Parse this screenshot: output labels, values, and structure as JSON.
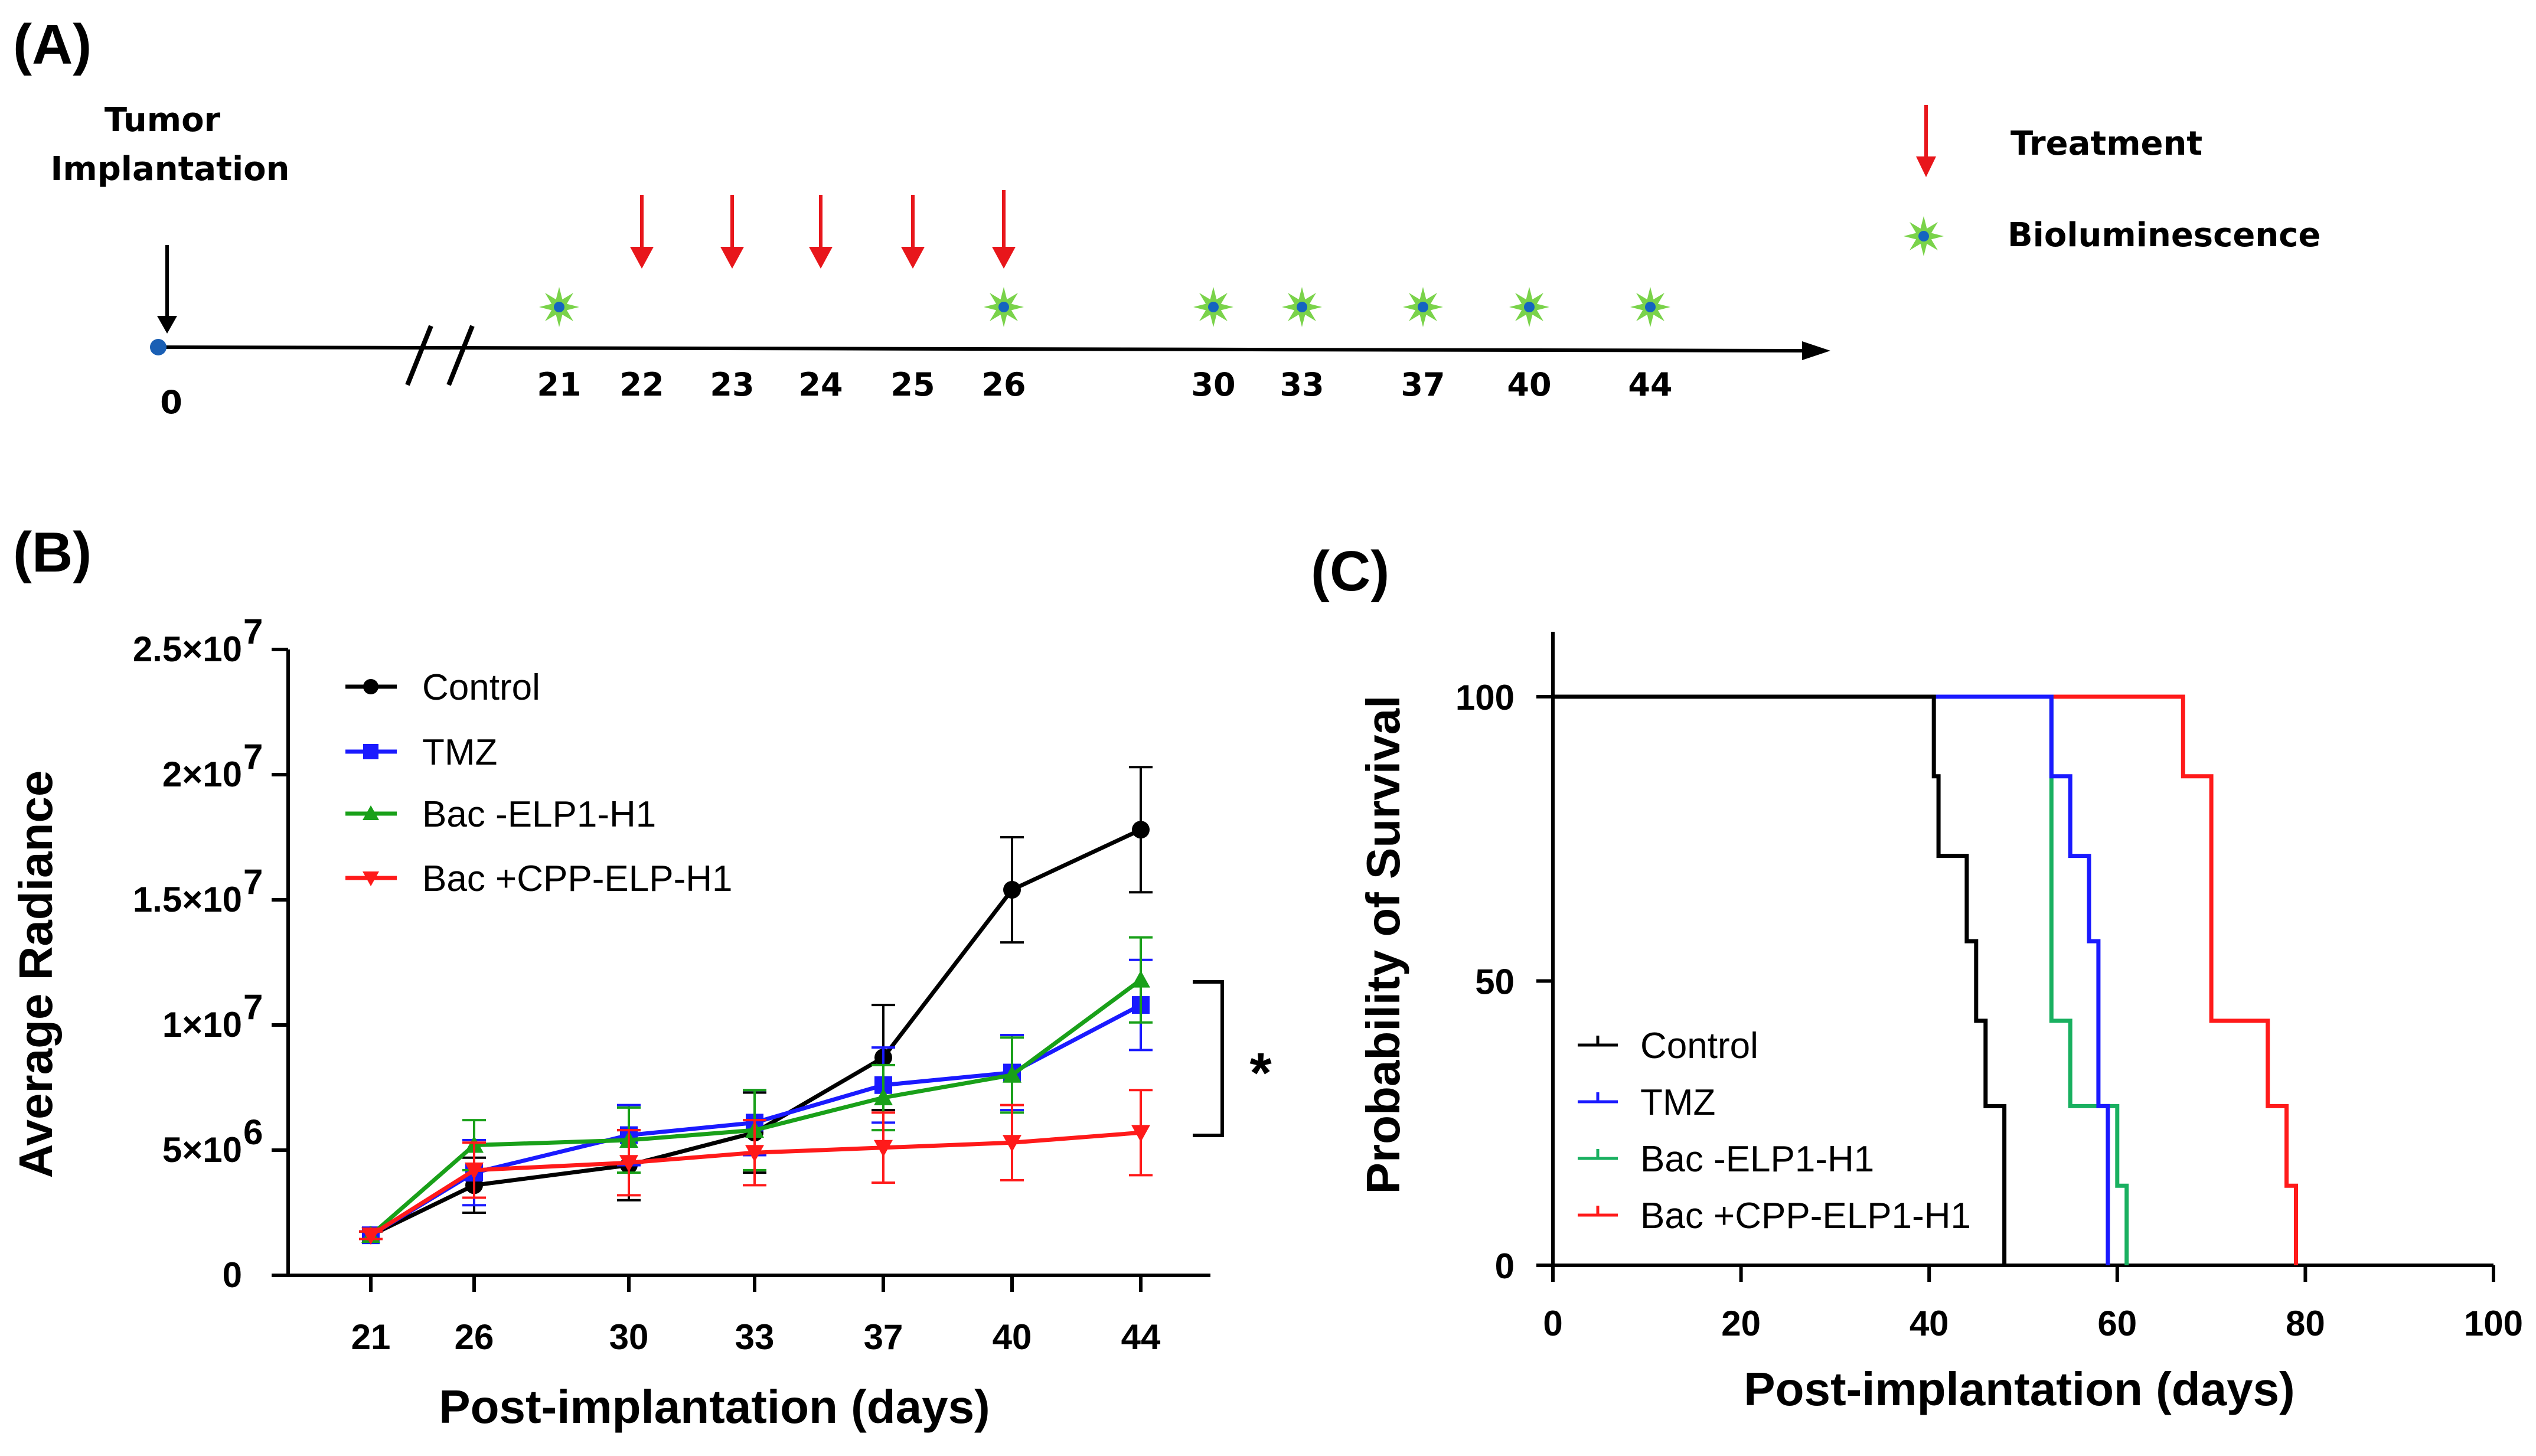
{
  "panels": {
    "A": "(A)",
    "B": "(B)",
    "C": "(C)"
  },
  "timeline": {
    "implant_label_line1": "Tumor",
    "implant_label_line2": "Implantation",
    "treatment_legend": "Treatment",
    "bioluminescence_legend": "Bioluminescence",
    "days": [
      "0",
      "21",
      "22",
      "23",
      "24",
      "25",
      "26",
      "30",
      "33",
      "37",
      "40",
      "44"
    ],
    "treatment_days": [
      "22",
      "23",
      "24",
      "25",
      "26"
    ],
    "bioluminescence_days": [
      "21",
      "26",
      "30",
      "33",
      "37",
      "40",
      "44"
    ],
    "colors": {
      "treatment": "#e8161b",
      "bioluminescence_outer": "#7ad34a",
      "bioluminescence_inner": "#1565c0",
      "origin": "#1a5fb4"
    }
  },
  "chart_data": [
    {
      "type": "line",
      "panel": "B",
      "xlabel": "Post-implantation (days)",
      "ylabel": "Average Radiance",
      "categories": [
        "21",
        "26",
        "30",
        "33",
        "37",
        "40",
        "44"
      ],
      "ylim": [
        0,
        25000000
      ],
      "yticks": [
        0,
        5000000,
        10000000,
        15000000,
        20000000,
        25000000
      ],
      "ytick_labels": [
        "0",
        "5×10",
        "1×10",
        "1.5×10",
        "2×10",
        "2.5×10"
      ],
      "ytick_exponents": [
        "",
        "6",
        "7",
        "7",
        "7",
        "7"
      ],
      "significance": "*",
      "legend_position": "top-left",
      "series": [
        {
          "name": "Control",
          "color": "#000000",
          "marker": "circle",
          "values": [
            1600000,
            3600000,
            4400000,
            5700000,
            8700000,
            15400000,
            17800000
          ],
          "errors": [
            150000,
            1100000,
            1400000,
            1600000,
            2100000,
            2100000,
            2500000
          ]
        },
        {
          "name": "TMZ",
          "color": "#1a1aff",
          "marker": "square",
          "values": [
            1600000,
            4100000,
            5600000,
            6100000,
            7600000,
            8100000,
            10800000
          ],
          "errors": [
            150000,
            1300000,
            1200000,
            1300000,
            1500000,
            1500000,
            1800000
          ]
        },
        {
          "name": "Bac -ELP1-H1",
          "color": "#19a019",
          "marker": "triangle",
          "values": [
            1600000,
            5200000,
            5400000,
            5800000,
            7100000,
            8000000,
            11800000
          ],
          "errors": [
            150000,
            1000000,
            1300000,
            1600000,
            1300000,
            1500000,
            1700000
          ]
        },
        {
          "name": "Bac +CPP-ELP-H1",
          "color": "#ff1a1a",
          "marker": "triangle-down",
          "values": [
            1600000,
            4200000,
            4500000,
            4900000,
            5100000,
            5300000,
            5700000
          ],
          "errors": [
            150000,
            1100000,
            1300000,
            1300000,
            1400000,
            1500000,
            1700000
          ]
        }
      ]
    },
    {
      "type": "line",
      "panel": "C",
      "subtype": "kaplan-meier",
      "xlabel": "Post-implantation (days)",
      "ylabel": "Probability of Survival",
      "xlim": [
        0,
        100
      ],
      "ylim": [
        0,
        110
      ],
      "xticks": [
        0,
        20,
        40,
        60,
        80,
        100
      ],
      "yticks": [
        0,
        50,
        100
      ],
      "legend_position": "bottom-left",
      "series": [
        {
          "name": "Control",
          "color": "#000000",
          "x": [
            0,
            40,
            40.5,
            41,
            44,
            45,
            46,
            48
          ],
          "y": [
            100,
            100,
            86,
            72,
            57,
            43,
            28,
            0
          ]
        },
        {
          "name": "TMZ",
          "color": "#1a1aff",
          "x": [
            0,
            52,
            53,
            55,
            57,
            58,
            59
          ],
          "y": [
            100,
            100,
            86,
            72,
            57,
            28,
            0
          ]
        },
        {
          "name": "Bac -ELP1-H1",
          "color": "#19b060",
          "x": [
            0,
            52,
            53,
            55,
            60,
            61
          ],
          "y": [
            100,
            100,
            43,
            28,
            14,
            0
          ]
        },
        {
          "name": "Bac +CPP-ELP1-H1",
          "color": "#ff1a1a",
          "x": [
            0,
            64,
            67,
            70,
            76,
            78,
            79
          ],
          "y": [
            100,
            100,
            86,
            43,
            28,
            14,
            0
          ]
        }
      ]
    }
  ]
}
